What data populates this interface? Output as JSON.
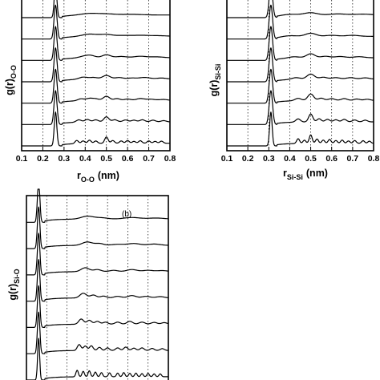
{
  "chart_data": [
    {
      "type": "line",
      "panel_tag": "",
      "xlabel": {
        "main": "r",
        "sub": "O-O",
        "unit": "(nm)"
      },
      "ylabel": {
        "main": "g(r)",
        "sub": "O-O"
      },
      "xlim": [
        0.1,
        0.8
      ],
      "xticks": [
        "0.1",
        "0.2",
        "0.3",
        "0.4",
        "0.5",
        "0.6",
        "0.7",
        "0.8"
      ],
      "grid": true,
      "main_peak": 0.26,
      "curves": [
        {
          "peaks": [
            [
              0.26,
              1.0,
              0.006
            ],
            [
              0.42,
              0.15,
              0.04
            ],
            [
              0.5,
              0.1,
              0.04
            ],
            [
              0.62,
              0.06,
              0.05
            ]
          ]
        },
        {
          "peaks": [
            [
              0.26,
              1.0,
              0.007
            ],
            [
              0.42,
              0.22,
              0.035
            ],
            [
              0.5,
              0.18,
              0.03
            ],
            [
              0.58,
              0.08,
              0.03
            ],
            [
              0.66,
              0.1,
              0.04
            ],
            [
              0.75,
              0.06,
              0.04
            ]
          ]
        },
        {
          "peaks": [
            [
              0.26,
              1.0,
              0.007
            ],
            [
              0.4,
              0.18,
              0.025
            ],
            [
              0.43,
              0.15,
              0.02
            ],
            [
              0.5,
              0.28,
              0.02
            ],
            [
              0.57,
              0.12,
              0.025
            ],
            [
              0.66,
              0.14,
              0.03
            ],
            [
              0.74,
              0.08,
              0.03
            ]
          ]
        },
        {
          "peaks": [
            [
              0.26,
              1.0,
              0.007
            ],
            [
              0.39,
              0.2,
              0.02
            ],
            [
              0.44,
              0.16,
              0.02
            ],
            [
              0.5,
              0.35,
              0.018
            ],
            [
              0.56,
              0.15,
              0.02
            ],
            [
              0.62,
              0.1,
              0.02
            ],
            [
              0.68,
              0.16,
              0.025
            ],
            [
              0.76,
              0.1,
              0.025
            ]
          ]
        },
        {
          "peaks": [
            [
              0.26,
              1.0,
              0.007
            ],
            [
              0.38,
              0.18,
              0.015
            ],
            [
              0.42,
              0.2,
              0.015
            ],
            [
              0.45,
              0.16,
              0.015
            ],
            [
              0.5,
              0.4,
              0.015
            ],
            [
              0.55,
              0.18,
              0.015
            ],
            [
              0.6,
              0.14,
              0.015
            ],
            [
              0.66,
              0.18,
              0.02
            ],
            [
              0.71,
              0.12,
              0.02
            ],
            [
              0.77,
              0.1,
              0.02
            ]
          ]
        },
        {
          "peaks": [
            [
              0.26,
              1.0,
              0.007
            ],
            [
              0.37,
              0.22,
              0.012
            ],
            [
              0.41,
              0.24,
              0.012
            ],
            [
              0.45,
              0.2,
              0.012
            ],
            [
              0.5,
              0.48,
              0.012
            ],
            [
              0.54,
              0.2,
              0.012
            ],
            [
              0.59,
              0.18,
              0.012
            ],
            [
              0.63,
              0.16,
              0.012
            ],
            [
              0.67,
              0.2,
              0.012
            ],
            [
              0.72,
              0.16,
              0.012
            ],
            [
              0.77,
              0.12,
              0.012
            ]
          ]
        },
        {
          "peaks": [
            [
              0.26,
              1.0,
              0.006
            ],
            [
              0.36,
              0.3,
              0.008
            ],
            [
              0.39,
              0.24,
              0.008
            ],
            [
              0.42,
              0.3,
              0.008
            ],
            [
              0.45,
              0.22,
              0.008
            ],
            [
              0.5,
              0.6,
              0.008
            ],
            [
              0.53,
              0.26,
              0.008
            ],
            [
              0.57,
              0.22,
              0.008
            ],
            [
              0.6,
              0.26,
              0.008
            ],
            [
              0.63,
              0.18,
              0.008
            ],
            [
              0.66,
              0.24,
              0.008
            ],
            [
              0.7,
              0.22,
              0.008
            ],
            [
              0.73,
              0.18,
              0.008
            ],
            [
              0.76,
              0.2,
              0.008
            ]
          ]
        }
      ]
    },
    {
      "type": "line",
      "panel_tag": "",
      "xlabel": {
        "main": "r",
        "sub": "Si-Si",
        "unit": "(nm)"
      },
      "ylabel": {
        "main": "g(r)",
        "sub": "Si-Si"
      },
      "xlim": [
        0.1,
        0.8
      ],
      "xticks": [
        "0.1",
        "0.2",
        "0.3",
        "0.4",
        "0.5",
        "0.6",
        "0.7",
        "0.8"
      ],
      "grid": true,
      "main_peak": 0.31,
      "curves": [
        {
          "peaks": [
            [
              0.31,
              1.0,
              0.008
            ],
            [
              0.4,
              0.1,
              0.04
            ],
            [
              0.5,
              0.22,
              0.03
            ],
            [
              0.63,
              0.1,
              0.04
            ],
            [
              0.75,
              0.08,
              0.04
            ]
          ]
        },
        {
          "peaks": [
            [
              0.31,
              1.0,
              0.008
            ],
            [
              0.4,
              0.1,
              0.035
            ],
            [
              0.5,
              0.3,
              0.025
            ],
            [
              0.6,
              0.1,
              0.03
            ],
            [
              0.7,
              0.1,
              0.03
            ]
          ]
        },
        {
          "peaks": [
            [
              0.31,
              1.0,
              0.008
            ],
            [
              0.42,
              0.12,
              0.025
            ],
            [
              0.5,
              0.38,
              0.02
            ],
            [
              0.57,
              0.14,
              0.02
            ],
            [
              0.64,
              0.12,
              0.025
            ],
            [
              0.73,
              0.1,
              0.025
            ]
          ]
        },
        {
          "peaks": [
            [
              0.31,
              1.0,
              0.008
            ],
            [
              0.43,
              0.16,
              0.02
            ],
            [
              0.5,
              0.48,
              0.018
            ],
            [
              0.56,
              0.18,
              0.018
            ],
            [
              0.62,
              0.14,
              0.02
            ],
            [
              0.69,
              0.14,
              0.02
            ],
            [
              0.76,
              0.12,
              0.02
            ]
          ]
        },
        {
          "peaks": [
            [
              0.31,
              1.0,
              0.008
            ],
            [
              0.44,
              0.22,
              0.015
            ],
            [
              0.5,
              0.62,
              0.014
            ],
            [
              0.55,
              0.22,
              0.014
            ],
            [
              0.6,
              0.18,
              0.015
            ],
            [
              0.66,
              0.18,
              0.015
            ],
            [
              0.72,
              0.14,
              0.015
            ],
            [
              0.77,
              0.12,
              0.015
            ]
          ]
        },
        {
          "peaks": [
            [
              0.31,
              1.0,
              0.008
            ],
            [
              0.44,
              0.3,
              0.011
            ],
            [
              0.5,
              0.75,
              0.01
            ],
            [
              0.54,
              0.3,
              0.01
            ],
            [
              0.58,
              0.24,
              0.011
            ],
            [
              0.62,
              0.2,
              0.011
            ],
            [
              0.66,
              0.24,
              0.011
            ],
            [
              0.71,
              0.18,
              0.011
            ],
            [
              0.76,
              0.16,
              0.011
            ]
          ]
        },
        {
          "peaks": [
            [
              0.31,
              1.0,
              0.006
            ],
            [
              0.44,
              0.45,
              0.007
            ],
            [
              0.47,
              0.3,
              0.007
            ],
            [
              0.5,
              0.8,
              0.007
            ],
            [
              0.53,
              0.4,
              0.007
            ],
            [
              0.56,
              0.3,
              0.007
            ],
            [
              0.59,
              0.36,
              0.007
            ],
            [
              0.62,
              0.26,
              0.007
            ],
            [
              0.65,
              0.3,
              0.007
            ],
            [
              0.68,
              0.22,
              0.007
            ],
            [
              0.71,
              0.26,
              0.007
            ],
            [
              0.75,
              0.24,
              0.007
            ],
            [
              0.78,
              0.2,
              0.007
            ]
          ]
        }
      ]
    },
    {
      "type": "line",
      "panel_tag": "(b)",
      "xlabel": {
        "main": "",
        "sub": "",
        "unit": ""
      },
      "ylabel": {
        "main": "g(r)",
        "sub": "Si-O"
      },
      "xlim": [
        0.1,
        0.8
      ],
      "xticks": [],
      "grid": true,
      "main_peak": 0.16,
      "curves": [
        {
          "peaks": [
            [
              0.16,
              1.0,
              0.006
            ],
            [
              0.4,
              0.22,
              0.03
            ],
            [
              0.47,
              0.1,
              0.03
            ],
            [
              0.62,
              0.12,
              0.04
            ],
            [
              0.74,
              0.08,
              0.04
            ]
          ]
        },
        {
          "peaks": [
            [
              0.16,
              1.0,
              0.006
            ],
            [
              0.4,
              0.26,
              0.025
            ],
            [
              0.46,
              0.14,
              0.02
            ],
            [
              0.55,
              0.08,
              0.03
            ],
            [
              0.63,
              0.14,
              0.03
            ],
            [
              0.73,
              0.1,
              0.03
            ]
          ]
        },
        {
          "peaks": [
            [
              0.16,
              1.0,
              0.006
            ],
            [
              0.39,
              0.3,
              0.02
            ],
            [
              0.45,
              0.16,
              0.018
            ],
            [
              0.53,
              0.1,
              0.02
            ],
            [
              0.62,
              0.16,
              0.025
            ],
            [
              0.7,
              0.1,
              0.025
            ],
            [
              0.77,
              0.08,
              0.025
            ]
          ]
        },
        {
          "peaks": [
            [
              0.16,
              1.0,
              0.006
            ],
            [
              0.38,
              0.36,
              0.016
            ],
            [
              0.43,
              0.22,
              0.015
            ],
            [
              0.48,
              0.14,
              0.015
            ],
            [
              0.55,
              0.12,
              0.018
            ],
            [
              0.62,
              0.18,
              0.02
            ],
            [
              0.69,
              0.12,
              0.02
            ],
            [
              0.76,
              0.1,
              0.02
            ]
          ]
        },
        {
          "peaks": [
            [
              0.16,
              1.0,
              0.006
            ],
            [
              0.37,
              0.4,
              0.012
            ],
            [
              0.41,
              0.3,
              0.012
            ],
            [
              0.45,
              0.22,
              0.012
            ],
            [
              0.49,
              0.16,
              0.012
            ],
            [
              0.55,
              0.16,
              0.013
            ],
            [
              0.61,
              0.22,
              0.014
            ],
            [
              0.67,
              0.16,
              0.014
            ],
            [
              0.73,
              0.14,
              0.014
            ],
            [
              0.78,
              0.12,
              0.014
            ]
          ]
        },
        {
          "peaks": [
            [
              0.16,
              1.0,
              0.006
            ],
            [
              0.36,
              0.46,
              0.009
            ],
            [
              0.39,
              0.34,
              0.009
            ],
            [
              0.42,
              0.36,
              0.009
            ],
            [
              0.46,
              0.24,
              0.009
            ],
            [
              0.5,
              0.2,
              0.009
            ],
            [
              0.55,
              0.2,
              0.01
            ],
            [
              0.59,
              0.26,
              0.01
            ],
            [
              0.63,
              0.18,
              0.01
            ],
            [
              0.67,
              0.2,
              0.01
            ],
            [
              0.72,
              0.16,
              0.01
            ],
            [
              0.77,
              0.14,
              0.01
            ]
          ]
        },
        {
          "peaks": [
            [
              0.16,
              1.0,
              0.005
            ],
            [
              0.35,
              0.5,
              0.006
            ],
            [
              0.38,
              0.42,
              0.006
            ],
            [
              0.41,
              0.46,
              0.006
            ],
            [
              0.44,
              0.36,
              0.006
            ],
            [
              0.47,
              0.32,
              0.006
            ],
            [
              0.51,
              0.3,
              0.006
            ],
            [
              0.55,
              0.28,
              0.006
            ],
            [
              0.58,
              0.32,
              0.006
            ],
            [
              0.61,
              0.26,
              0.006
            ],
            [
              0.64,
              0.28,
              0.006
            ],
            [
              0.67,
              0.24,
              0.006
            ],
            [
              0.7,
              0.26,
              0.006
            ],
            [
              0.73,
              0.22,
              0.006
            ],
            [
              0.76,
              0.22,
              0.006
            ]
          ]
        }
      ]
    }
  ]
}
